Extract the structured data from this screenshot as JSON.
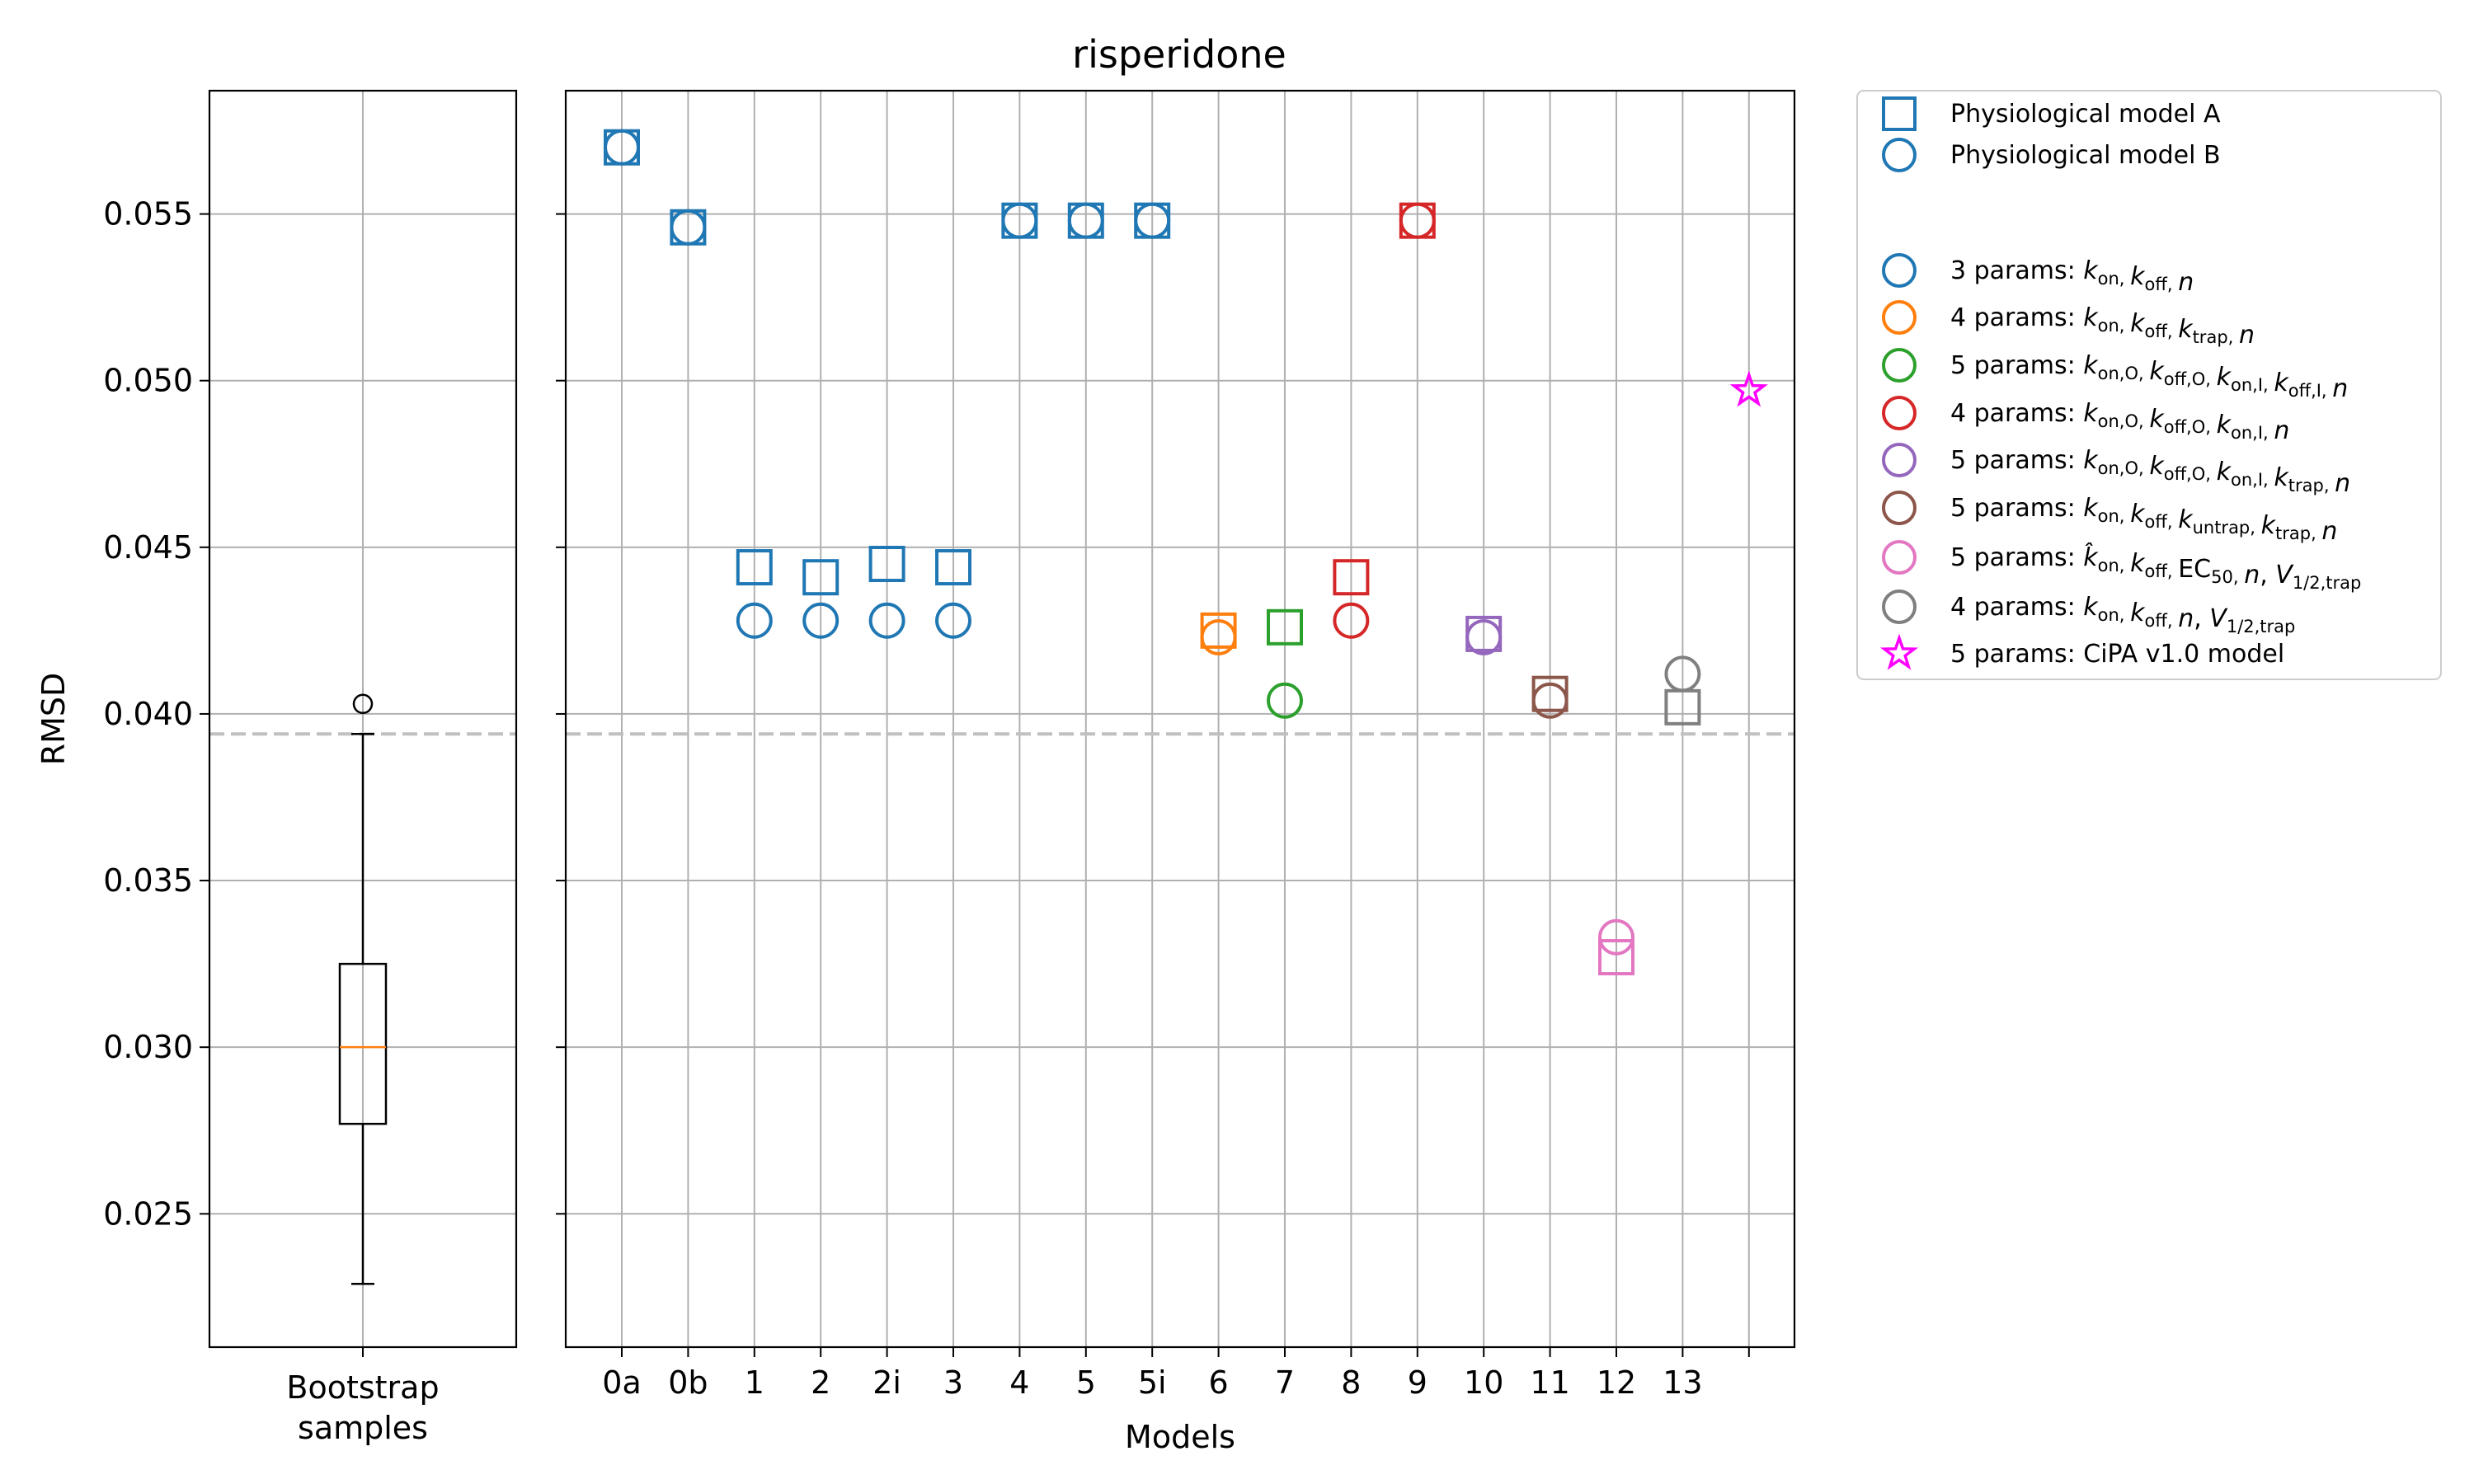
{
  "chart_data": {
    "type": "scatter",
    "title": "risperidone",
    "xlabel": "Models",
    "ylabel": "RMSD",
    "ylim": [
      0.021,
      0.0587
    ],
    "yticks": [
      0.025,
      0.03,
      0.035,
      0.04,
      0.045,
      0.05,
      0.055
    ],
    "ytick_labels": [
      "0.025",
      "0.030",
      "0.035",
      "0.040",
      "0.045",
      "0.050",
      "0.055"
    ],
    "grid": true,
    "legend_position": "outside-right",
    "reference_line_y": 0.0394,
    "reference_line_color": "#c0c0c0",
    "categories": [
      "0a",
      "0b",
      "1",
      "2",
      "2i",
      "3",
      "4",
      "5",
      "5i",
      "6",
      "7",
      "8",
      "9",
      "10",
      "11",
      "12",
      "13",
      ""
    ],
    "colors": {
      "3 params": "#1f77b4",
      "4 params trap": "#ff7f0e",
      "5 params O/I": "#2ca02c",
      "4 params O/I": "#d62728",
      "5 params O/I trap": "#9467bd",
      "5 params untrap": "#8c564b",
      "5 params EC50": "#e377c2",
      "4 params V": "#7f7f7f",
      "cipa": "#ff00ff"
    },
    "series": [
      {
        "name": "Physiological model A",
        "marker": "square-icon",
        "points": [
          {
            "x": "0a",
            "y": 0.057,
            "color": "#1f77b4"
          },
          {
            "x": "0b",
            "y": 0.0546,
            "color": "#1f77b4"
          },
          {
            "x": "1",
            "y": 0.0444,
            "color": "#1f77b4"
          },
          {
            "x": "2",
            "y": 0.0441,
            "color": "#1f77b4"
          },
          {
            "x": "2i",
            "y": 0.0445,
            "color": "#1f77b4"
          },
          {
            "x": "3",
            "y": 0.0444,
            "color": "#1f77b4"
          },
          {
            "x": "4",
            "y": 0.0548,
            "color": "#1f77b4"
          },
          {
            "x": "5",
            "y": 0.0548,
            "color": "#1f77b4"
          },
          {
            "x": "5i",
            "y": 0.0548,
            "color": "#1f77b4"
          },
          {
            "x": "6",
            "y": 0.0425,
            "color": "#ff7f0e"
          },
          {
            "x": "7",
            "y": 0.0426,
            "color": "#2ca02c"
          },
          {
            "x": "8",
            "y": 0.0441,
            "color": "#d62728"
          },
          {
            "x": "9",
            "y": 0.0548,
            "color": "#d62728"
          },
          {
            "x": "10",
            "y": 0.0424,
            "color": "#9467bd"
          },
          {
            "x": "11",
            "y": 0.0406,
            "color": "#8c564b"
          },
          {
            "x": "12",
            "y": 0.0327,
            "color": "#e377c2"
          },
          {
            "x": "13",
            "y": 0.0402,
            "color": "#7f7f7f"
          }
        ]
      },
      {
        "name": "Physiological model B",
        "marker": "circle-icon",
        "points": [
          {
            "x": "0a",
            "y": 0.057,
            "color": "#1f77b4"
          },
          {
            "x": "0b",
            "y": 0.0546,
            "color": "#1f77b4"
          },
          {
            "x": "1",
            "y": 0.0428,
            "color": "#1f77b4"
          },
          {
            "x": "2",
            "y": 0.0428,
            "color": "#1f77b4"
          },
          {
            "x": "2i",
            "y": 0.0428,
            "color": "#1f77b4"
          },
          {
            "x": "3",
            "y": 0.0428,
            "color": "#1f77b4"
          },
          {
            "x": "4",
            "y": 0.0548,
            "color": "#1f77b4"
          },
          {
            "x": "5",
            "y": 0.0548,
            "color": "#1f77b4"
          },
          {
            "x": "5i",
            "y": 0.0548,
            "color": "#1f77b4"
          },
          {
            "x": "6",
            "y": 0.0423,
            "color": "#ff7f0e"
          },
          {
            "x": "7",
            "y": 0.0404,
            "color": "#2ca02c"
          },
          {
            "x": "8",
            "y": 0.0428,
            "color": "#d62728"
          },
          {
            "x": "9",
            "y": 0.0548,
            "color": "#d62728"
          },
          {
            "x": "10",
            "y": 0.0423,
            "color": "#9467bd"
          },
          {
            "x": "11",
            "y": 0.0404,
            "color": "#8c564b"
          },
          {
            "x": "12",
            "y": 0.0333,
            "color": "#e377c2"
          },
          {
            "x": "13",
            "y": 0.0412,
            "color": "#7f7f7f"
          }
        ]
      },
      {
        "name": "5 params: CiPA v1.0 model",
        "marker": "star-icon",
        "points": [
          {
            "x": "",
            "y": 0.0497,
            "color": "#ff00ff"
          }
        ]
      }
    ],
    "boxplot": {
      "xlabel_line1": "Bootstrap",
      "xlabel_line2": "samples",
      "whisker_low": 0.0229,
      "q1": 0.0277,
      "median": 0.03,
      "q3": 0.0325,
      "whisker_high": 0.0394,
      "outliers": [
        0.0403
      ],
      "median_color": "#ff7f0e"
    },
    "legend": [
      {
        "marker": "square-icon",
        "color": "#1f77b4",
        "text": "Physiological model A"
      },
      {
        "marker": "circle-icon",
        "color": "#1f77b4",
        "text": "Physiological model B"
      },
      {
        "marker": "circle-icon",
        "color": "#1f77b4",
        "text": "3 params: k_on, k_off, n"
      },
      {
        "marker": "circle-icon",
        "color": "#ff7f0e",
        "text": "4 params: k_on, k_off, k_trap, n"
      },
      {
        "marker": "circle-icon",
        "color": "#2ca02c",
        "text": "5 params: k_on,O, k_off,O, k_on,I, k_off,I, n"
      },
      {
        "marker": "circle-icon",
        "color": "#d62728",
        "text": "4 params: k_on,O, k_off,O, k_on,I, n"
      },
      {
        "marker": "circle-icon",
        "color": "#9467bd",
        "text": "5 params: k_on,O, k_off,O, k_on,I, k_trap, n"
      },
      {
        "marker": "circle-icon",
        "color": "#8c564b",
        "text": "5 params: k_on, k_off, k_untrap, k_trap, n"
      },
      {
        "marker": "circle-icon",
        "color": "#e377c2",
        "text": "5 params: k̂_on, k_off, EC_50, n, V_1/2,trap"
      },
      {
        "marker": "circle-icon",
        "color": "#7f7f7f",
        "text": "4 params: k_on, k_off, n, V_1/2,trap"
      },
      {
        "marker": "star-icon",
        "color": "#ff00ff",
        "text": "5 params: CiPA v1.0 model"
      }
    ]
  }
}
